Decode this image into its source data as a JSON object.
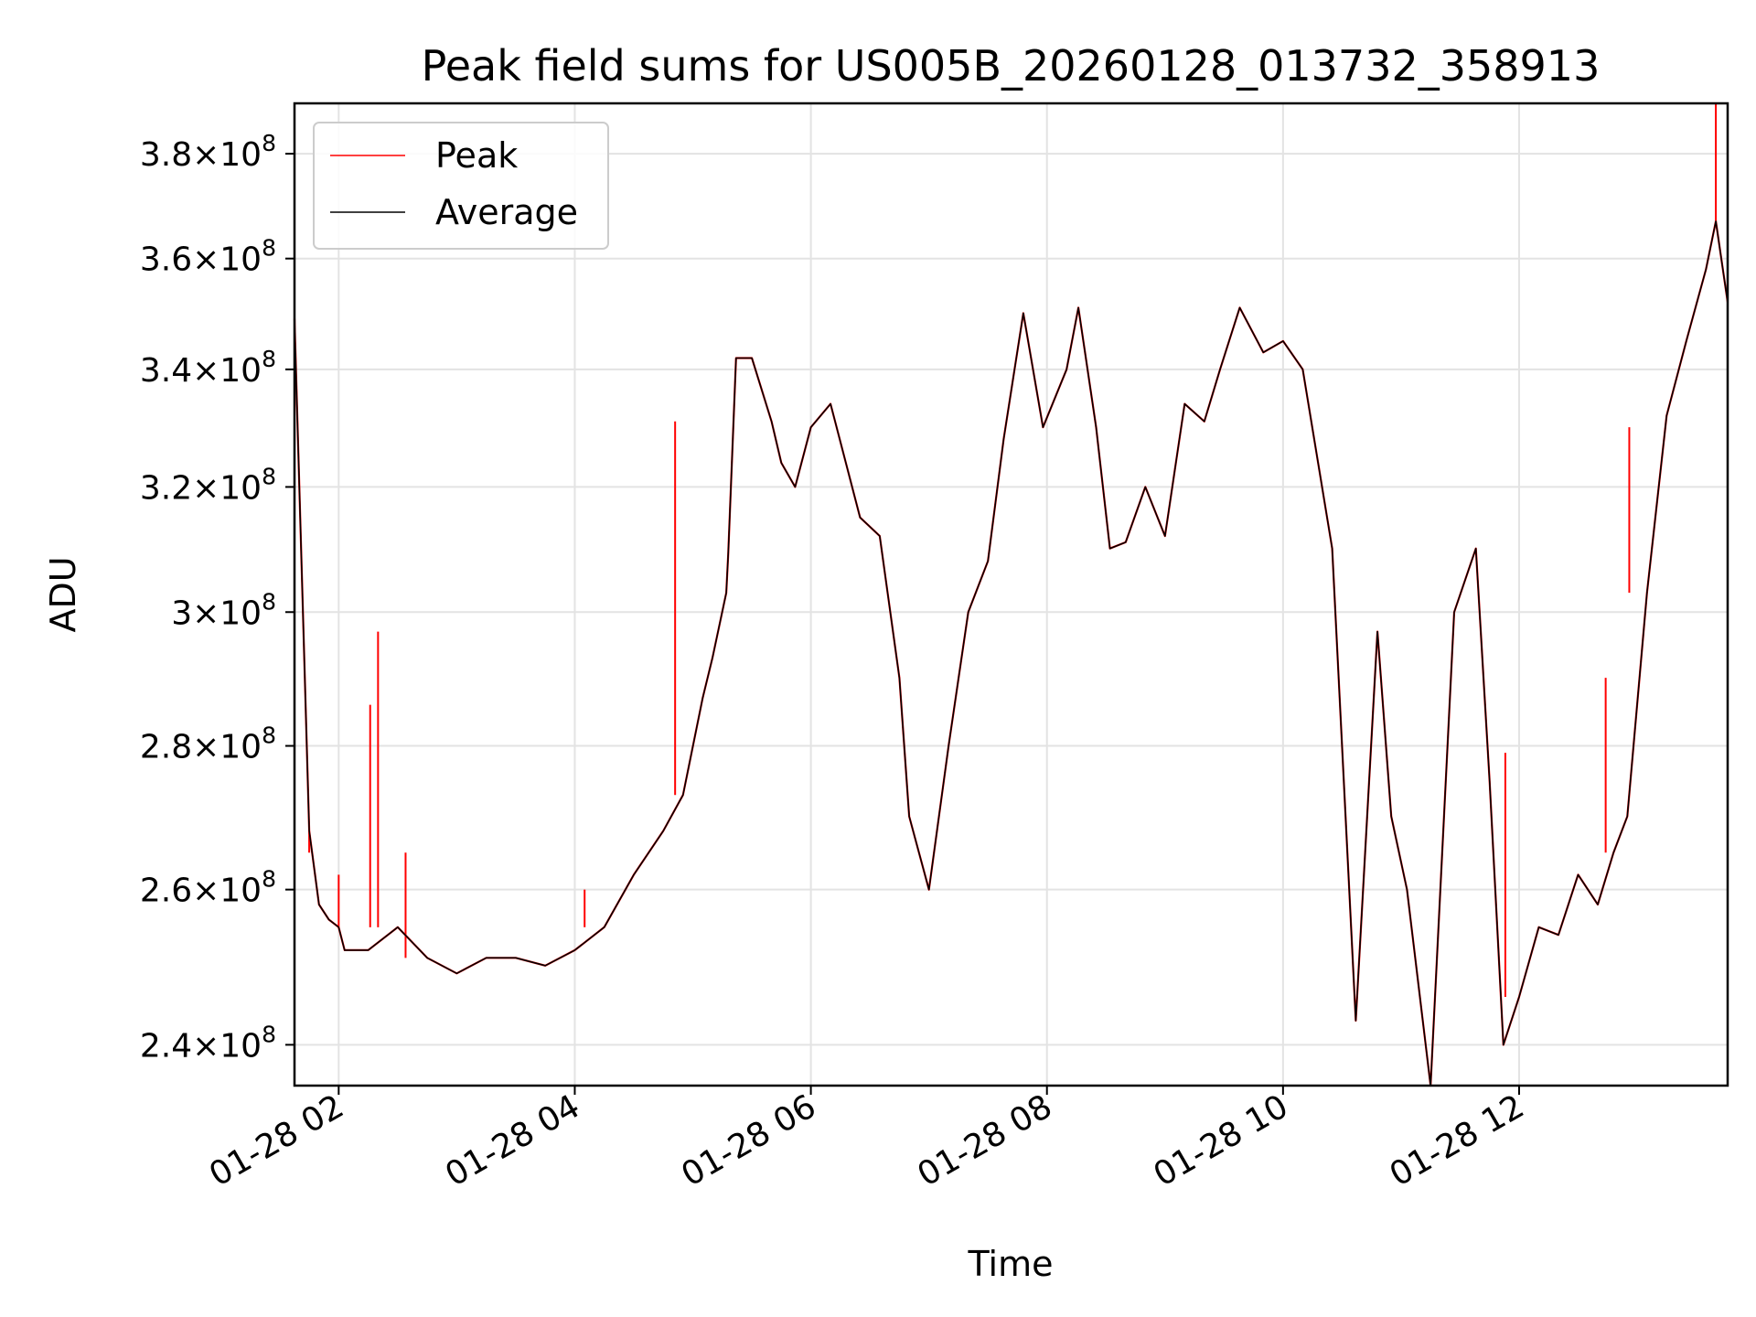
{
  "chart_data": {
    "type": "line",
    "title": "Peak field sums for US005B_20260128_013732_358913",
    "xlabel": "Time",
    "ylabel": "ADU",
    "y_scale": "log",
    "xlim": [
      "2026-01-28T01:37:32",
      "2026-01-28T13:46:00"
    ],
    "ylim": [
      235000000,
      390000000
    ],
    "x_ticks": [
      {
        "value": "2026-01-28T02:00:00",
        "label": "01-28 02"
      },
      {
        "value": "2026-01-28T04:00:00",
        "label": "01-28 04"
      },
      {
        "value": "2026-01-28T06:00:00",
        "label": "01-28 06"
      },
      {
        "value": "2026-01-28T08:00:00",
        "label": "01-28 08"
      },
      {
        "value": "2026-01-28T10:00:00",
        "label": "01-28 10"
      },
      {
        "value": "2026-01-28T12:00:00",
        "label": "01-28 12"
      }
    ],
    "y_ticks": [
      {
        "value": 240000000,
        "mantissa": "2.4",
        "exp": "8"
      },
      {
        "value": 260000000,
        "mantissa": "2.6",
        "exp": "8"
      },
      {
        "value": 280000000,
        "mantissa": "2.8",
        "exp": "8"
      },
      {
        "value": 300000000,
        "mantissa": "3",
        "exp": "8"
      },
      {
        "value": 320000000,
        "mantissa": "3.2",
        "exp": "8"
      },
      {
        "value": 340000000,
        "mantissa": "3.4",
        "exp": "8"
      },
      {
        "value": 360000000,
        "mantissa": "3.6",
        "exp": "8"
      },
      {
        "value": 380000000,
        "mantissa": "3.8",
        "exp": "8"
      }
    ],
    "grid": true,
    "legend_position": "top-left",
    "x": [
      "2026-01-28T01:37:32",
      "2026-01-28T01:45:00",
      "2026-01-28T01:50:00",
      "2026-01-28T01:55:00",
      "2026-01-28T02:00:00",
      "2026-01-28T02:03:00",
      "2026-01-28T02:15:00",
      "2026-01-28T02:30:00",
      "2026-01-28T02:45:00",
      "2026-01-28T03:00:00",
      "2026-01-28T03:15:00",
      "2026-01-28T03:30:00",
      "2026-01-28T03:45:00",
      "2026-01-28T04:00:00",
      "2026-01-28T04:15:00",
      "2026-01-28T04:30:00",
      "2026-01-28T04:45:00",
      "2026-01-28T04:55:00",
      "2026-01-28T05:05:00",
      "2026-01-28T05:10:00",
      "2026-01-28T05:17:00",
      "2026-01-28T05:18:00",
      "2026-01-28T05:22:00",
      "2026-01-28T05:30:00",
      "2026-01-28T05:40:00",
      "2026-01-28T05:45:00",
      "2026-01-28T05:52:00",
      "2026-01-28T06:00:00",
      "2026-01-28T06:10:00",
      "2026-01-28T06:25:00",
      "2026-01-28T06:35:00",
      "2026-01-28T06:45:00",
      "2026-01-28T06:50:00",
      "2026-01-28T07:00:00",
      "2026-01-28T07:10:00",
      "2026-01-28T07:20:00",
      "2026-01-28T07:30:00",
      "2026-01-28T07:38:00",
      "2026-01-28T07:48:00",
      "2026-01-28T07:58:00",
      "2026-01-28T08:10:00",
      "2026-01-28T08:16:00",
      "2026-01-28T08:25:00",
      "2026-01-28T08:32:00",
      "2026-01-28T08:40:00",
      "2026-01-28T08:50:00",
      "2026-01-28T09:00:00",
      "2026-01-28T09:10:00",
      "2026-01-28T09:20:00",
      "2026-01-28T09:28:00",
      "2026-01-28T09:38:00",
      "2026-01-28T09:50:00",
      "2026-01-28T10:00:00",
      "2026-01-28T10:10:00",
      "2026-01-28T10:25:00",
      "2026-01-28T10:37:00",
      "2026-01-28T10:48:00",
      "2026-01-28T10:55:00",
      "2026-01-28T11:03:00",
      "2026-01-28T11:15:00",
      "2026-01-28T11:27:00",
      "2026-01-28T11:38:00",
      "2026-01-28T11:45:00",
      "2026-01-28T11:52:00",
      "2026-01-28T12:00:00",
      "2026-01-28T12:10:00",
      "2026-01-28T12:20:00",
      "2026-01-28T12:30:00",
      "2026-01-28T12:40:00",
      "2026-01-28T12:48:00",
      "2026-01-28T12:55:00",
      "2026-01-28T13:05:00",
      "2026-01-28T13:15:00",
      "2026-01-28T13:25:00",
      "2026-01-28T13:35:00",
      "2026-01-28T13:40:00",
      "2026-01-28T13:46:00"
    ],
    "series": [
      {
        "name": "Peak",
        "color": "#ff0000",
        "values": [
          349000000,
          268000000,
          258000000,
          256000000,
          255000000,
          252000000,
          252000000,
          255000000,
          251000000,
          249000000,
          251000000,
          251000000,
          250000000,
          252000000,
          255000000,
          262000000,
          268000000,
          273000000,
          287000000,
          293000000,
          303000000,
          309000000,
          342000000,
          342000000,
          331000000,
          324000000,
          320000000,
          330000000,
          334000000,
          315000000,
          312000000,
          290000000,
          270000000,
          260000000,
          280000000,
          300000000,
          308000000,
          328000000,
          350000000,
          330000000,
          340000000,
          351000000,
          330000000,
          310000000,
          311000000,
          320000000,
          312000000,
          334000000,
          331000000,
          340000000,
          351000000,
          343000000,
          345000000,
          340000000,
          310000000,
          243000000,
          297000000,
          270000000,
          260000000,
          235000000,
          300000000,
          310000000,
          275000000,
          240000000,
          246000000,
          255000000,
          254000000,
          262000000,
          258000000,
          265000000,
          270000000,
          303000000,
          332000000,
          345000000,
          358000000,
          367000000,
          352000000
        ],
        "spikes": [
          {
            "x": "2026-01-28T01:45:00",
            "value": 265000000
          },
          {
            "x": "2026-01-28T02:00:00",
            "value": 262000000
          },
          {
            "x": "2026-01-28T02:16:00",
            "value": 286000000
          },
          {
            "x": "2026-01-28T02:20:00",
            "value": 297000000
          },
          {
            "x": "2026-01-28T02:34:00",
            "value": 265000000
          },
          {
            "x": "2026-01-28T04:05:00",
            "value": 260000000
          },
          {
            "x": "2026-01-28T04:51:00",
            "value": 331000000
          },
          {
            "x": "2026-01-28T11:53:00",
            "value": 279000000
          },
          {
            "x": "2026-01-28T12:44:00",
            "value": 290000000
          },
          {
            "x": "2026-01-28T12:56:00",
            "value": 330000000
          },
          {
            "x": "2026-01-28T13:40:00",
            "value": 390000000
          }
        ]
      },
      {
        "name": "Average",
        "color": "#000000",
        "values": [
          349000000,
          268000000,
          258000000,
          256000000,
          255000000,
          252000000,
          252000000,
          255000000,
          251000000,
          249000000,
          251000000,
          251000000,
          250000000,
          252000000,
          255000000,
          262000000,
          268000000,
          273000000,
          287000000,
          293000000,
          303000000,
          309000000,
          342000000,
          342000000,
          331000000,
          324000000,
          320000000,
          330000000,
          334000000,
          315000000,
          312000000,
          290000000,
          270000000,
          260000000,
          280000000,
          300000000,
          308000000,
          328000000,
          350000000,
          330000000,
          340000000,
          351000000,
          330000000,
          310000000,
          311000000,
          320000000,
          312000000,
          334000000,
          331000000,
          340000000,
          351000000,
          343000000,
          345000000,
          340000000,
          310000000,
          243000000,
          297000000,
          270000000,
          260000000,
          235000000,
          300000000,
          310000000,
          275000000,
          240000000,
          246000000,
          255000000,
          254000000,
          262000000,
          258000000,
          265000000,
          270000000,
          303000000,
          332000000,
          345000000,
          358000000,
          367000000,
          352000000
        ]
      }
    ]
  }
}
